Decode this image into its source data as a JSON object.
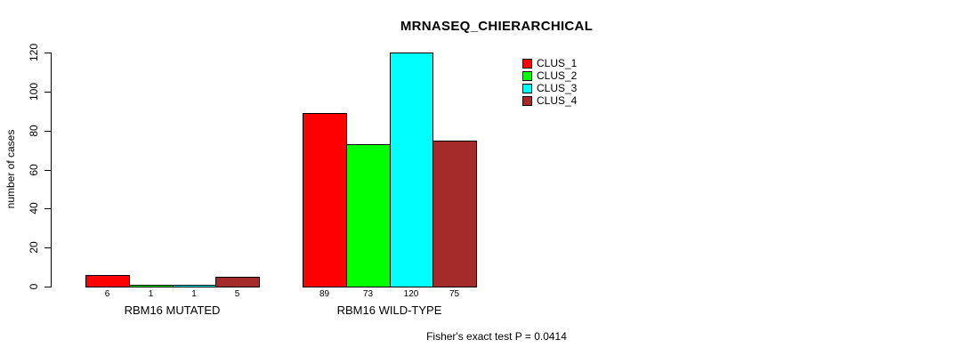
{
  "title": "MRNASEQ_CHIERARCHICAL",
  "footer": "Fisher's exact test P = 0.0414",
  "y_axis": {
    "label": "number of cases",
    "ticks": [
      0,
      20,
      40,
      60,
      80,
      100,
      120
    ]
  },
  "legend": {
    "items": [
      {
        "label": "CLUS_1",
        "color": "#FF0000"
      },
      {
        "label": "CLUS_2",
        "color": "#00FF00"
      },
      {
        "label": "CLUS_3",
        "color": "#00FFFF"
      },
      {
        "label": "CLUS_4",
        "color": "#A52A2A"
      }
    ]
  },
  "chart_data": {
    "type": "bar",
    "title": "MRNASEQ_CHIERARCHICAL",
    "xlabel": "",
    "ylabel": "number of cases",
    "ylim": [
      0,
      120
    ],
    "yticks": [
      0,
      20,
      40,
      60,
      80,
      100,
      120
    ],
    "grid": false,
    "legend_position": "top-right",
    "categories": [
      "RBM16 MUTATED",
      "RBM16 WILD-TYPE"
    ],
    "series": [
      {
        "name": "CLUS_1",
        "color": "#FF0000",
        "values": [
          6,
          89
        ]
      },
      {
        "name": "CLUS_2",
        "color": "#00FF00",
        "values": [
          1,
          73
        ]
      },
      {
        "name": "CLUS_3",
        "color": "#00FFFF",
        "values": [
          1,
          120
        ]
      },
      {
        "name": "CLUS_4",
        "color": "#A52A2A",
        "values": [
          5,
          75
        ]
      }
    ],
    "bar_value_labels": [
      [
        6,
        1,
        1,
        5
      ],
      [
        89,
        73,
        120,
        75
      ]
    ],
    "annotation": "Fisher's exact test P = 0.0414"
  }
}
